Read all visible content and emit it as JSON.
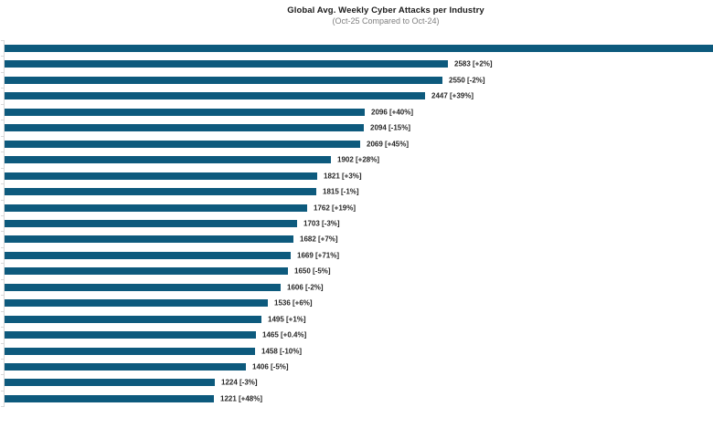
{
  "chart_data": {
    "type": "bar",
    "orientation": "horizontal",
    "title": "Global Avg. Weekly Cyber Attacks per Industry",
    "subtitle": "(Oct-25 Compared to Oct-24)",
    "grid": "off",
    "legend": "none",
    "x_axis_tick_labels_visible": false,
    "category_labels_visible": false,
    "value_label_format": "value [change]",
    "bar_color": "#0d5a7d",
    "axis_color": "#d9d9d9",
    "value_label_color": "#262626",
    "title_color": "#1a1a1a",
    "subtitle_color": "#7f7f7f",
    "bars": [
      {
        "value": null,
        "change": null,
        "label": "",
        "full_width": true
      },
      {
        "value": 2583,
        "change": "+2%",
        "label": "2583 [+2%]"
      },
      {
        "value": 2550,
        "change": "-2%",
        "label": "2550 [-2%]"
      },
      {
        "value": 2447,
        "change": "+39%",
        "label": "2447 [+39%]"
      },
      {
        "value": 2096,
        "change": "+40%",
        "label": "2096 [+40%]"
      },
      {
        "value": 2094,
        "change": "-15%",
        "label": "2094 [-15%]"
      },
      {
        "value": 2069,
        "change": "+45%",
        "label": "2069 [+45%]"
      },
      {
        "value": 1902,
        "change": "+28%",
        "label": "1902 [+28%]"
      },
      {
        "value": 1821,
        "change": "+3%",
        "label": "1821 [+3%]"
      },
      {
        "value": 1815,
        "change": "-1%",
        "label": "1815 [-1%]"
      },
      {
        "value": 1762,
        "change": "+19%",
        "label": "1762 [+19%]"
      },
      {
        "value": 1703,
        "change": "-3%",
        "label": "1703 [-3%]"
      },
      {
        "value": 1682,
        "change": "+7%",
        "label": "1682 [+7%]"
      },
      {
        "value": 1669,
        "change": "+71%",
        "label": "1669 [+71%]"
      },
      {
        "value": 1650,
        "change": "-5%",
        "label": "1650 [-5%]"
      },
      {
        "value": 1606,
        "change": "-2%",
        "label": "1606 [-2%]"
      },
      {
        "value": 1536,
        "change": "+6%",
        "label": "1536 [+6%]"
      },
      {
        "value": 1495,
        "change": "+1%",
        "label": "1495 [+1%]"
      },
      {
        "value": 1465,
        "change": "+0.4%",
        "label": "1465 [+0.4%]"
      },
      {
        "value": 1458,
        "change": "-10%",
        "label": "1458 [-10%]"
      },
      {
        "value": 1406,
        "change": "-5%",
        "label": "1406 [-5%]"
      },
      {
        "value": 1224,
        "change": "-3%",
        "label": "1224 [-3%]"
      },
      {
        "value": 1221,
        "change": "+48%",
        "label": "1221 [+48%]"
      }
    ]
  }
}
